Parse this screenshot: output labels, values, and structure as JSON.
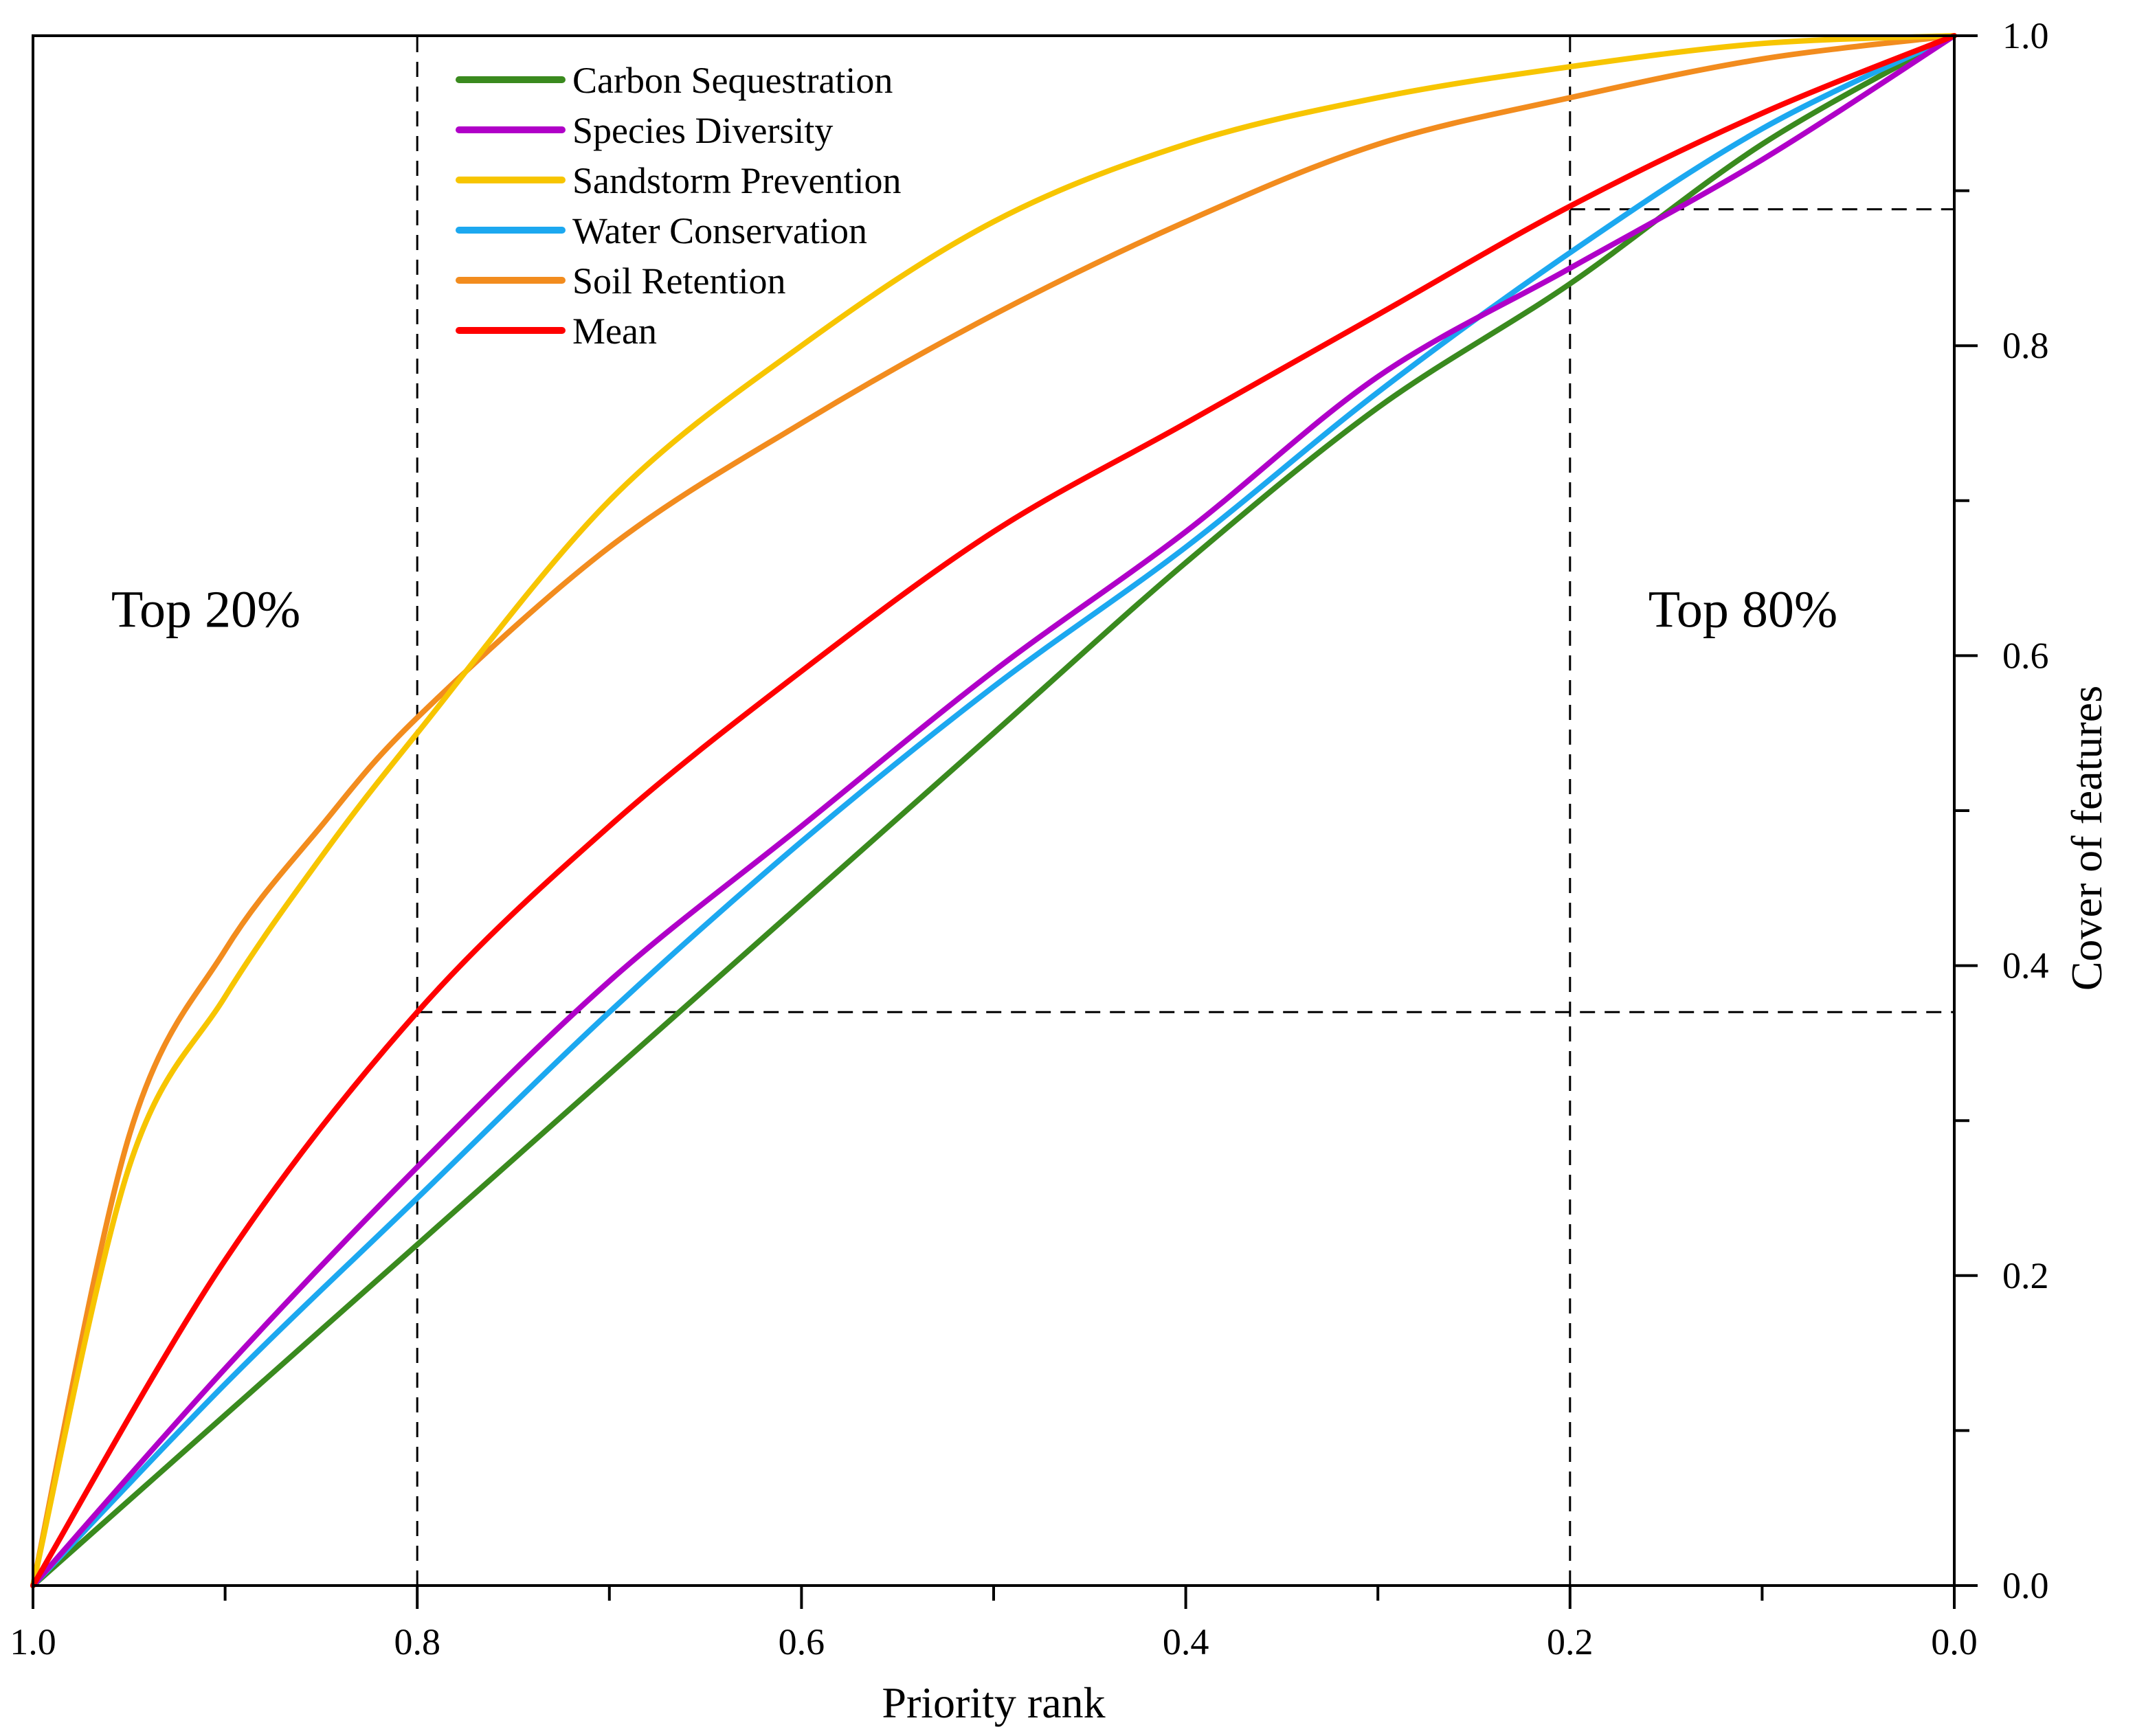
{
  "chart_data": {
    "type": "line",
    "title": "",
    "xlabel": "Priority rank",
    "ylabel": "Cover of features",
    "xlim": [
      1.0,
      0.0
    ],
    "ylim": [
      0.0,
      1.0
    ],
    "x_reversed": true,
    "y_axis_position": "right",
    "x_ticks": [
      "1.0",
      "0.8",
      "0.6",
      "0.4",
      "0.2",
      "0.0"
    ],
    "y_ticks": [
      "0.0",
      "0.2",
      "0.4",
      "0.6",
      "0.8",
      "1.0"
    ],
    "grid": false,
    "legend_position": "top-left",
    "series": [
      {
        "name": "Carbon Sequestration",
        "color": "#3a8a1e",
        "x": [
          1.0,
          0.9,
          0.8,
          0.7,
          0.6,
          0.5,
          0.4,
          0.3,
          0.2,
          0.1,
          0.0
        ],
        "y": [
          0.0,
          0.11,
          0.22,
          0.33,
          0.44,
          0.55,
          0.66,
          0.76,
          0.84,
          0.93,
          1.0
        ]
      },
      {
        "name": "Species Diversity",
        "color": "#b000c8",
        "x": [
          1.0,
          0.9,
          0.8,
          0.7,
          0.6,
          0.5,
          0.4,
          0.3,
          0.2,
          0.1,
          0.0
        ],
        "y": [
          0.0,
          0.14,
          0.27,
          0.39,
          0.49,
          0.59,
          0.68,
          0.78,
          0.85,
          0.92,
          1.0
        ]
      },
      {
        "name": "Sandstorm Prevention",
        "color": "#f7c500",
        "x": [
          1.0,
          0.95,
          0.9,
          0.85,
          0.8,
          0.7,
          0.6,
          0.5,
          0.4,
          0.3,
          0.2,
          0.1,
          0.0
        ],
        "y": [
          0.0,
          0.27,
          0.38,
          0.47,
          0.55,
          0.7,
          0.8,
          0.88,
          0.93,
          0.96,
          0.98,
          0.995,
          1.0
        ]
      },
      {
        "name": "Water Conservation",
        "color": "#1ca8f0",
        "x": [
          1.0,
          0.9,
          0.8,
          0.7,
          0.6,
          0.5,
          0.4,
          0.3,
          0.2,
          0.1,
          0.0
        ],
        "y": [
          0.0,
          0.13,
          0.25,
          0.37,
          0.48,
          0.58,
          0.67,
          0.77,
          0.86,
          0.94,
          1.0
        ]
      },
      {
        "name": "Soil Retention",
        "color": "#f28c1e",
        "x": [
          1.0,
          0.95,
          0.9,
          0.85,
          0.8,
          0.7,
          0.6,
          0.5,
          0.4,
          0.3,
          0.2,
          0.1,
          0.0
        ],
        "y": [
          0.0,
          0.29,
          0.41,
          0.49,
          0.56,
          0.67,
          0.75,
          0.82,
          0.88,
          0.93,
          0.96,
          0.985,
          1.0
        ]
      },
      {
        "name": "Mean",
        "color": "#ff0000",
        "x": [
          1.0,
          0.9,
          0.8,
          0.7,
          0.6,
          0.5,
          0.4,
          0.3,
          0.2,
          0.1,
          0.0
        ],
        "y": [
          0.0,
          0.21,
          0.37,
          0.49,
          0.59,
          0.68,
          0.75,
          0.82,
          0.89,
          0.95,
          1.0
        ]
      }
    ],
    "reference_lines": [
      {
        "orientation": "vertical",
        "x": 0.8,
        "y0": 0.0,
        "y1": 1.0
      },
      {
        "orientation": "vertical",
        "x": 0.2,
        "y0": 0.0,
        "y1": 1.0
      },
      {
        "orientation": "horizontal",
        "y": 0.37,
        "x0": 0.8,
        "x1": 0.0
      },
      {
        "orientation": "horizontal",
        "y": 0.888,
        "x0": 0.2,
        "x1": 0.0
      }
    ],
    "annotations": [
      {
        "text": "Top 20%",
        "x": 0.91,
        "y": 0.63
      },
      {
        "text": "Top 80%",
        "x": 0.11,
        "y": 0.63
      }
    ]
  }
}
